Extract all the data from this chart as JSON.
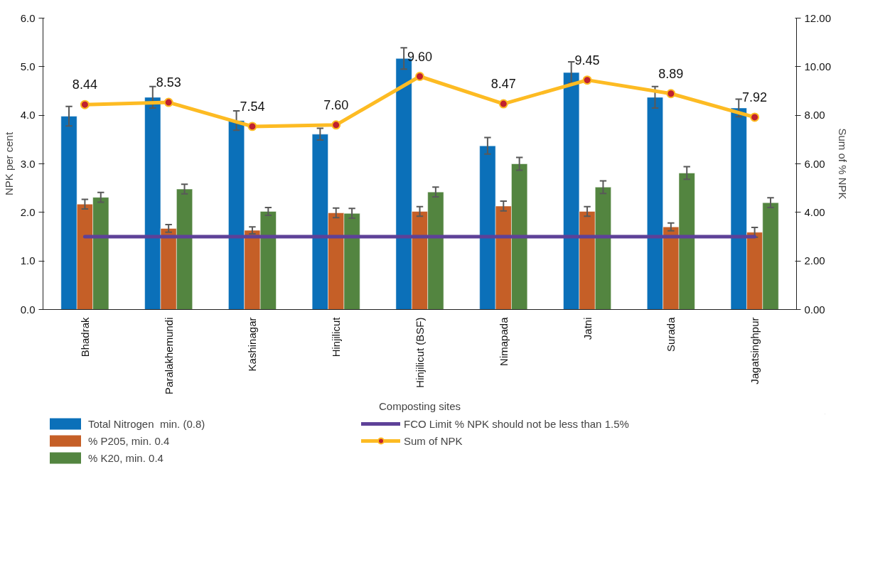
{
  "chart_data": {
    "type": "bar",
    "xlabel": "Composting sites",
    "ylabel": "NPK per cent",
    "y2label": "Sum of % NPK",
    "categories": [
      "Bhadrak",
      "Paralakhemundi",
      "Kashinagar",
      "Hinjilicut",
      "Hinjilicut (BSF)",
      "Nimapada",
      "Jatni",
      "Surada",
      "Jagatsinghpur"
    ],
    "series": [
      {
        "name": "Total Nitrogen  min. (0.8)",
        "color": "#0b70b9",
        "values": [
          3.98,
          4.37,
          3.89,
          3.61,
          5.17,
          3.37,
          4.88,
          4.37,
          4.15
        ],
        "errors": [
          0.2,
          0.22,
          0.2,
          0.12,
          0.22,
          0.17,
          0.22,
          0.22,
          0.18
        ]
      },
      {
        "name": "% P205, min. 0.4",
        "color": "#c55f27",
        "values": [
          2.17,
          1.67,
          1.63,
          1.99,
          2.02,
          2.13,
          2.02,
          1.7,
          1.59
        ],
        "errors": [
          0.1,
          0.08,
          0.07,
          0.1,
          0.1,
          0.1,
          0.1,
          0.08,
          0.1
        ]
      },
      {
        "name": "% K20, min. 0.4",
        "color": "#538540",
        "values": [
          2.31,
          2.48,
          2.02,
          1.98,
          2.42,
          3.0,
          2.52,
          2.81,
          2.2
        ],
        "errors": [
          0.1,
          0.1,
          0.08,
          0.1,
          0.1,
          0.13,
          0.13,
          0.13,
          0.1
        ]
      },
      {
        "name": "FCO Limit % NPK should not be less than 1.5%",
        "type": "line",
        "color": "#5e4198",
        "values": [
          1.5,
          1.5,
          1.5,
          1.5,
          1.5,
          1.5,
          1.5,
          1.5,
          1.5
        ]
      },
      {
        "name": "Sum of NPK",
        "type": "line",
        "axis": "y2",
        "color": "#fdbb23",
        "marker": "circle",
        "values": [
          8.44,
          8.53,
          7.54,
          7.6,
          9.6,
          8.47,
          9.45,
          8.89,
          7.92
        ],
        "value_labels": [
          "8.44",
          "8.53",
          "7.54",
          "7.60",
          "9.60",
          "8.47",
          "9.45",
          "8.89",
          "7.92"
        ]
      }
    ],
    "ylim": [
      0,
      6
    ],
    "yticks": [
      {
        "value": 0,
        "label": "0.0"
      },
      {
        "value": 1,
        "label": "1.0"
      },
      {
        "value": 2,
        "label": "2.0"
      },
      {
        "value": 3,
        "label": "3.0"
      },
      {
        "value": 4,
        "label": "4.0"
      },
      {
        "value": 5,
        "label": "5.0"
      },
      {
        "value": 6,
        "label": "6.0"
      }
    ],
    "y2lim": [
      0,
      12
    ],
    "y2ticks": [
      {
        "value": 0,
        "label": "0.00"
      },
      {
        "value": 2,
        "label": "2.00"
      },
      {
        "value": 4,
        "label": "4.00"
      },
      {
        "value": 6,
        "label": "6.00"
      },
      {
        "value": 8,
        "label": "8.00"
      },
      {
        "value": 10,
        "label": "10.00"
      },
      {
        "value": 12,
        "label": "12.00"
      }
    ],
    "grid": false,
    "legend": "bottom"
  }
}
